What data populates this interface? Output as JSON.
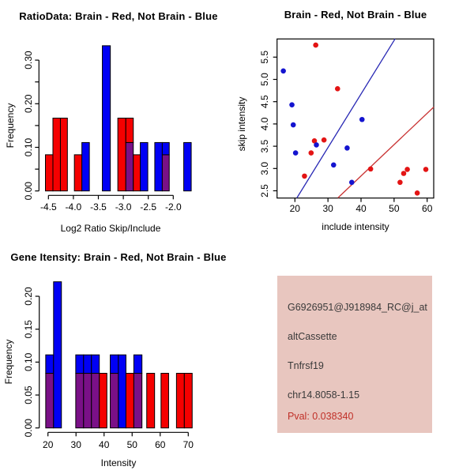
{
  "colors": {
    "bar_red": "#f50000",
    "bar_blue": "#0000f5",
    "overlap_purple": "#7a1087",
    "point_red": "#e31414",
    "point_blue": "#1414cf",
    "line_red": "#c93434",
    "line_blue": "#2828b4",
    "axis": "#000000",
    "panel_pink": "#e8c6bf",
    "info_text": "#3a3a3a",
    "pval_red": "#c03028"
  },
  "chart_data": [
    {
      "id": "ratio-hist",
      "type": "bar",
      "title": "RatioData: Brain - Red, Not Brain - Blue",
      "xlabel": "Log2 Ratio Skip/Include",
      "ylabel": "Frequency",
      "x_ticks": [
        -4.5,
        -4.0,
        -3.5,
        -3.0,
        -2.5,
        -2.0
      ],
      "y_ticks": [
        0.0,
        0.1,
        0.2,
        0.3
      ],
      "y_minor_ticks": [
        0.05,
        0.15,
        0.25
      ],
      "xlim": [
        -4.7,
        -1.55
      ],
      "ylim": [
        0,
        0.35
      ],
      "legend": "Brain = red, Not Brain = blue, overlap = purple",
      "bars": [
        {
          "x0": -4.56,
          "x1": -4.41,
          "red": 0.083,
          "blue": 0
        },
        {
          "x0": -4.41,
          "x1": -4.26,
          "red": 0.167,
          "blue": 0
        },
        {
          "x0": -4.26,
          "x1": -4.12,
          "red": 0.167,
          "blue": 0
        },
        {
          "x0": -3.98,
          "x1": -3.83,
          "red": 0.083,
          "blue": 0
        },
        {
          "x0": -3.83,
          "x1": -3.68,
          "red": 0,
          "blue": 0.111
        },
        {
          "x0": -3.42,
          "x1": -3.26,
          "red": 0,
          "blue": 0.333
        },
        {
          "x0": -3.11,
          "x1": -2.95,
          "red": 0.167,
          "blue": 0
        },
        {
          "x0": -2.95,
          "x1": -2.8,
          "red": 0.167,
          "blue": 0.111
        },
        {
          "x0": -2.8,
          "x1": -2.66,
          "red": 0.083,
          "blue": 0
        },
        {
          "x0": -2.66,
          "x1": -2.51,
          "red": 0,
          "blue": 0.111
        },
        {
          "x0": -2.37,
          "x1": -2.22,
          "red": 0,
          "blue": 0.111
        },
        {
          "x0": -2.22,
          "x1": -2.08,
          "red": 0.083,
          "blue": 0.111
        },
        {
          "x0": -1.79,
          "x1": -1.64,
          "red": 0,
          "blue": 0.111
        }
      ]
    },
    {
      "id": "scatter",
      "type": "scatter",
      "title": "Brain - Red, Not Brain - Blue",
      "xlabel": "include intensity",
      "ylabel": "skip intensity",
      "x_ticks": [
        20,
        30,
        40,
        50,
        60
      ],
      "y_ticks": [
        2.5,
        3.0,
        3.5,
        4.0,
        4.5,
        5.0,
        5.5
      ],
      "xlim": [
        14.6,
        62.0
      ],
      "ylim": [
        2.34,
        5.91
      ],
      "series": [
        {
          "name": "Brain",
          "color_key": "red",
          "points": [
            [
              26.3,
              5.77
            ],
            [
              32.9,
              4.79
            ],
            [
              25.9,
              3.62
            ],
            [
              28.8,
              3.64
            ],
            [
              24.9,
              3.35
            ],
            [
              22.9,
              2.83
            ],
            [
              42.9,
              2.99
            ],
            [
              51.8,
              2.69
            ],
            [
              52.9,
              2.89
            ],
            [
              54.0,
              2.98
            ],
            [
              59.6,
              2.98
            ],
            [
              57.0,
              2.45
            ]
          ]
        },
        {
          "name": "Not Brain",
          "color_key": "blue",
          "points": [
            [
              16.5,
              5.19
            ],
            [
              19.1,
              4.43
            ],
            [
              19.5,
              3.98
            ],
            [
              26.5,
              3.53
            ],
            [
              20.2,
              3.35
            ],
            [
              35.8,
              3.46
            ],
            [
              31.7,
              3.08
            ],
            [
              40.3,
              4.1
            ],
            [
              37.2,
              2.69
            ]
          ]
        }
      ],
      "lines": [
        {
          "name": "not-brain-fit",
          "color_key": "blue",
          "x0": 20.6,
          "y0": 2.34,
          "x1": 50.3,
          "y1": 5.91
        },
        {
          "name": "brain-fit",
          "color_key": "red",
          "x0": 33.0,
          "y0": 2.34,
          "x1": 62.0,
          "y1": 4.38
        }
      ]
    },
    {
      "id": "gene-hist",
      "type": "bar",
      "title": "Gene Itensity: Brain - Red, Not Brain - Blue",
      "xlabel": "Intensity",
      "ylabel": "Frequency",
      "x_ticks": [
        20,
        30,
        40,
        50,
        60,
        70
      ],
      "y_ticks": [
        0.0,
        0.05,
        0.1,
        0.15,
        0.2
      ],
      "y_minor_ticks": [],
      "xlim": [
        17,
        73
      ],
      "ylim": [
        0,
        0.23
      ],
      "legend": "Brain = red, Not Brain = blue, overlap = purple",
      "bars": [
        {
          "x0": 19.2,
          "x1": 22.0,
          "red": 0.083,
          "blue": 0.111
        },
        {
          "x0": 22.0,
          "x1": 24.8,
          "red": 0,
          "blue": 0.222
        },
        {
          "x0": 29.9,
          "x1": 32.7,
          "red": 0.083,
          "blue": 0.111
        },
        {
          "x0": 32.7,
          "x1": 35.5,
          "red": 0.083,
          "blue": 0.111
        },
        {
          "x0": 35.5,
          "x1": 38.3,
          "red": 0.083,
          "blue": 0.111
        },
        {
          "x0": 38.3,
          "x1": 41.0,
          "red": 0.083,
          "blue": 0
        },
        {
          "x0": 42.2,
          "x1": 45.1,
          "red": 0.083,
          "blue": 0.111
        },
        {
          "x0": 45.1,
          "x1": 47.8,
          "red": 0,
          "blue": 0.111
        },
        {
          "x0": 47.8,
          "x1": 50.6,
          "red": 0.083,
          "blue": 0
        },
        {
          "x0": 50.6,
          "x1": 53.5,
          "red": 0.083,
          "blue": 0.111
        },
        {
          "x0": 55.2,
          "x1": 58.0,
          "red": 0.083,
          "blue": 0
        },
        {
          "x0": 60.3,
          "x1": 63.0,
          "red": 0.083,
          "blue": 0
        },
        {
          "x0": 65.8,
          "x1": 68.6,
          "red": 0.083,
          "blue": 0
        },
        {
          "x0": 68.6,
          "x1": 71.4,
          "red": 0.083,
          "blue": 0
        }
      ]
    }
  ],
  "info_panel": {
    "probe_id": "G6926951@J918984_RC@j_at",
    "splice_type": "altCassette",
    "gene": "Tnfrsf19",
    "location": "chr14.8058-1.15",
    "pval": "Pval: 0.038340"
  }
}
